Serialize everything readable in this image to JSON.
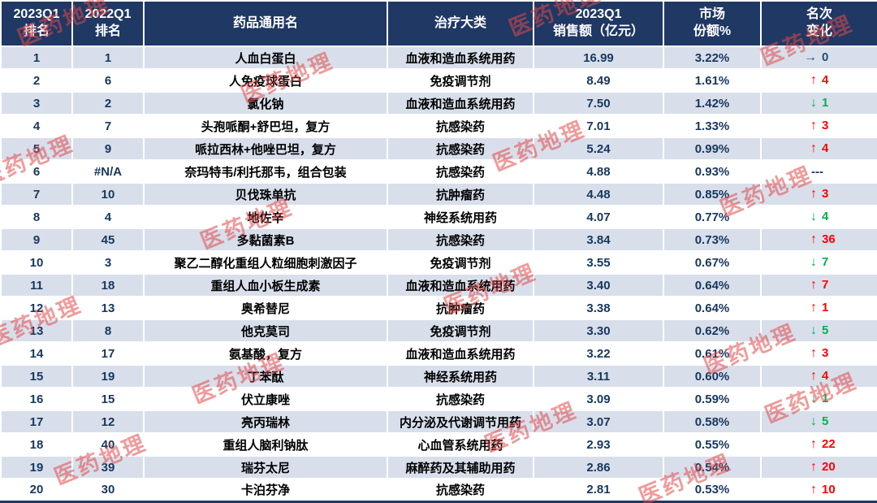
{
  "chart_data": {
    "type": "table",
    "title": "",
    "columns": [
      "2023Q1\n排名",
      "2022Q1\n排名",
      "药品通用名",
      "治疗大类",
      "2023Q1\n销售额（亿元）",
      "市场\n份额%",
      "名次\n变化"
    ],
    "rows": [
      {
        "rank_2023": "1",
        "rank_2022": "1",
        "name": "人血白蛋白",
        "category": "血液和造血系统用药",
        "sales": "16.99",
        "share": "3.22%",
        "change": {
          "dir": "same",
          "value": "0"
        }
      },
      {
        "rank_2023": "2",
        "rank_2022": "6",
        "name": "人免疫球蛋白",
        "category": "免疫调节剂",
        "sales": "8.49",
        "share": "1.61%",
        "change": {
          "dir": "up",
          "value": "4"
        }
      },
      {
        "rank_2023": "3",
        "rank_2022": "2",
        "name": "氯化钠",
        "category": "血液和造血系统用药",
        "sales": "7.50",
        "share": "1.42%",
        "change": {
          "dir": "down",
          "value": "1"
        }
      },
      {
        "rank_2023": "4",
        "rank_2022": "7",
        "name": "头孢哌酮+舒巴坦，复方",
        "category": "抗感染药",
        "sales": "7.01",
        "share": "1.33%",
        "change": {
          "dir": "up",
          "value": "3"
        }
      },
      {
        "rank_2023": "5",
        "rank_2022": "9",
        "name": "哌拉西林+他唑巴坦，复方",
        "category": "抗感染药",
        "sales": "5.24",
        "share": "0.99%",
        "change": {
          "dir": "up",
          "value": "4"
        }
      },
      {
        "rank_2023": "6",
        "rank_2022": "#N/A",
        "name": "奈玛特韦/利托那韦，组合包装",
        "category": "抗感染药",
        "sales": "4.88",
        "share": "0.93%",
        "change": {
          "dir": "none",
          "value": "---"
        }
      },
      {
        "rank_2023": "7",
        "rank_2022": "10",
        "name": "贝伐珠单抗",
        "category": "抗肿瘤药",
        "sales": "4.48",
        "share": "0.85%",
        "change": {
          "dir": "up",
          "value": "3"
        }
      },
      {
        "rank_2023": "8",
        "rank_2022": "4",
        "name": "地佐辛",
        "category": "神经系统用药",
        "sales": "4.07",
        "share": "0.77%",
        "change": {
          "dir": "down",
          "value": "4"
        }
      },
      {
        "rank_2023": "9",
        "rank_2022": "45",
        "name": "多黏菌素B",
        "category": "抗感染药",
        "sales": "3.84",
        "share": "0.73%",
        "change": {
          "dir": "up",
          "value": "36"
        }
      },
      {
        "rank_2023": "10",
        "rank_2022": "3",
        "name": "聚乙二醇化重组人粒细胞刺激因子",
        "category": "免疫调节剂",
        "sales": "3.55",
        "share": "0.67%",
        "change": {
          "dir": "down",
          "value": "7"
        }
      },
      {
        "rank_2023": "11",
        "rank_2022": "18",
        "name": "重组人血小板生成素",
        "category": "血液和造血系统用药",
        "sales": "3.40",
        "share": "0.64%",
        "change": {
          "dir": "up",
          "value": "7"
        }
      },
      {
        "rank_2023": "12",
        "rank_2022": "13",
        "name": "奥希替尼",
        "category": "抗肿瘤药",
        "sales": "3.38",
        "share": "0.64%",
        "change": {
          "dir": "up",
          "value": "1"
        }
      },
      {
        "rank_2023": "13",
        "rank_2022": "8",
        "name": "他克莫司",
        "category": "免疫调节剂",
        "sales": "3.30",
        "share": "0.62%",
        "change": {
          "dir": "down",
          "value": "5"
        }
      },
      {
        "rank_2023": "14",
        "rank_2022": "17",
        "name": "氨基酸，复方",
        "category": "血液和造血系统用药",
        "sales": "3.22",
        "share": "0.61%",
        "change": {
          "dir": "up",
          "value": "3"
        }
      },
      {
        "rank_2023": "15",
        "rank_2022": "19",
        "name": "丁苯酞",
        "category": "神经系统用药",
        "sales": "3.11",
        "share": "0.60%",
        "change": {
          "dir": "up",
          "value": "4"
        }
      },
      {
        "rank_2023": "16",
        "rank_2022": "15",
        "name": "伏立康唑",
        "category": "抗感染药",
        "sales": "3.09",
        "share": "0.59%",
        "change": {
          "dir": "down",
          "value": "1"
        }
      },
      {
        "rank_2023": "17",
        "rank_2022": "12",
        "name": "亮丙瑞林",
        "category": "内分泌及代谢调节用药",
        "sales": "3.07",
        "share": "0.58%",
        "change": {
          "dir": "down",
          "value": "5"
        }
      },
      {
        "rank_2023": "18",
        "rank_2022": "40",
        "name": "重组人脑利钠肽",
        "category": "心血管系统用药",
        "sales": "2.93",
        "share": "0.55%",
        "change": {
          "dir": "up",
          "value": "22"
        }
      },
      {
        "rank_2023": "19",
        "rank_2022": "39",
        "name": "瑞芬太尼",
        "category": "麻醉药及其辅助用药",
        "sales": "2.86",
        "share": "0.54%",
        "change": {
          "dir": "up",
          "value": "20"
        }
      },
      {
        "rank_2023": "20",
        "rank_2022": "30",
        "name": "卡泊芬净",
        "category": "抗感染药",
        "sales": "2.81",
        "share": "0.53%",
        "change": {
          "dir": "up",
          "value": "10"
        }
      }
    ]
  },
  "watermark": {
    "text": "医药地理"
  },
  "arrows": {
    "up": "↑",
    "down": "↓",
    "same": "→",
    "none": ""
  },
  "colors": {
    "header-bg": "#1f3864",
    "row-shaded": "#d8dfeb",
    "num-color": "#17375e",
    "up": "#fe0000",
    "down": "#00b050",
    "same": "#1f4e79",
    "none-color": "#17375e",
    "border": "#ffffff",
    "bottom-line": "#1f3864",
    "watermark": "#e34a4a"
  }
}
